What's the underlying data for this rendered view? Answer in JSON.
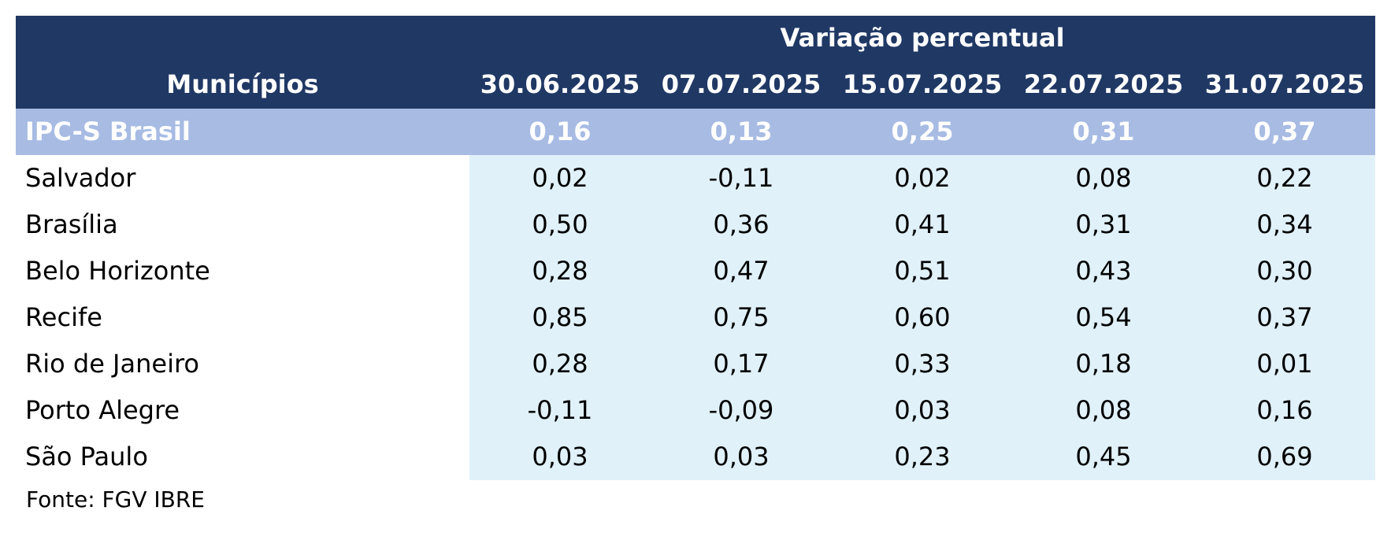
{
  "chart_data": {
    "type": "table",
    "header_group": "Variação percentual",
    "row_header": "Municípios",
    "columns": [
      "30.06.2025",
      "07.07.2025",
      "15.07.2025",
      "22.07.2025",
      "31.07.2025"
    ],
    "summary_row": {
      "name": "IPC-S Brasil",
      "values": [
        "0,16",
        "0,13",
        "0,25",
        "0,31",
        "0,37"
      ]
    },
    "rows": [
      {
        "name": "Salvador",
        "values": [
          "0,02",
          "-0,11",
          "0,02",
          "0,08",
          "0,22"
        ]
      },
      {
        "name": "Brasília",
        "values": [
          "0,50",
          "0,36",
          "0,41",
          "0,31",
          "0,34"
        ]
      },
      {
        "name": "Belo Horizonte",
        "values": [
          "0,28",
          "0,47",
          "0,51",
          "0,43",
          "0,30"
        ]
      },
      {
        "name": "Recife",
        "values": [
          "0,85",
          "0,75",
          "0,60",
          "0,54",
          "0,37"
        ]
      },
      {
        "name": "Rio de Janeiro",
        "values": [
          "0,28",
          "0,17",
          "0,33",
          "0,18",
          "0,01"
        ]
      },
      {
        "name": "Porto Alegre",
        "values": [
          "-0,11",
          "-0,09",
          "0,03",
          "0,08",
          "0,16"
        ]
      },
      {
        "name": "São Paulo",
        "values": [
          "0,03",
          "0,03",
          "0,23",
          "0,45",
          "0,69"
        ]
      }
    ],
    "source": "Fonte: FGV IBRE",
    "colors": {
      "header_bg": "#203864",
      "summary_bg": "#a7bbe3",
      "values_bg": "#e0f1fa"
    }
  }
}
